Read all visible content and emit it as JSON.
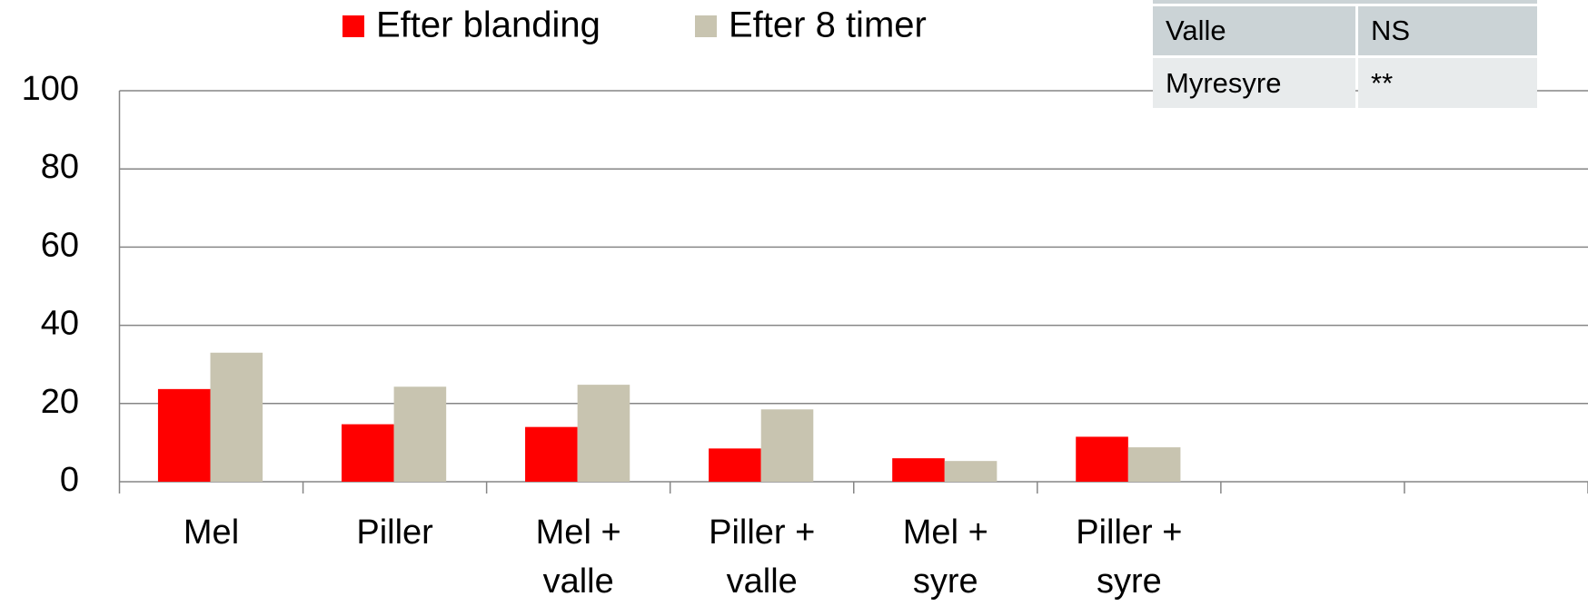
{
  "chart_data": {
    "type": "bar",
    "categories": [
      "Mel",
      "Piller",
      "Mel + valle",
      "Piller + valle",
      "Mel + syre",
      "Piller + syre",
      null,
      null
    ],
    "series": [
      {
        "name": "Efter blanding",
        "color": "#ff0000",
        "values": [
          23.7,
          14.7,
          14,
          8.5,
          6,
          11.5,
          null,
          null
        ]
      },
      {
        "name": "Efter 8 timer",
        "color": "#c8c4b0",
        "values": [
          33,
          24.3,
          24.8,
          18.5,
          5.3,
          8.8,
          null,
          null
        ]
      }
    ],
    "ylim": [
      0,
      100
    ],
    "yticks": [
      0,
      20,
      40,
      60,
      80,
      100
    ],
    "grid": true,
    "legend": "top"
  },
  "table": {
    "rows": [
      [
        "Valle",
        "NS"
      ],
      [
        "Myresyre",
        "**"
      ]
    ]
  }
}
